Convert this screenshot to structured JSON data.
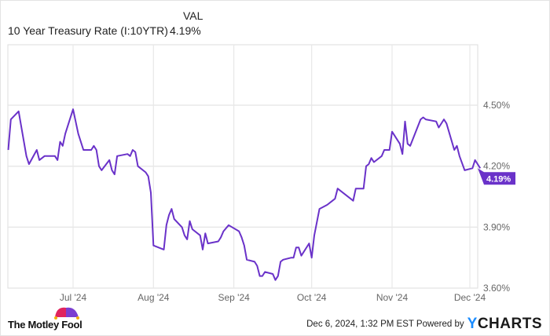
{
  "header": {
    "col_label": "VAL",
    "series_name": "10 Year Treasury Rate (I:10YTR)",
    "series_value": "4.19%"
  },
  "footer": {
    "brand": "The Motley Fool",
    "timestamp": "Dec 6, 2024, 1:32 PM EST Powered by",
    "powered_brand": "YCHARTS"
  },
  "chart_data": {
    "type": "line",
    "title": "",
    "xlabel": "",
    "ylabel": "",
    "x_range": [
      "2024-06-05",
      "2024-12-06"
    ],
    "ylim": [
      3.6,
      4.53
    ],
    "y_axis_side": "right",
    "grid": true,
    "x_ticks": [
      {
        "date": "2024-07-01",
        "label": "Jul '24"
      },
      {
        "date": "2024-08-01",
        "label": "Aug '24"
      },
      {
        "date": "2024-09-01",
        "label": "Sep '24"
      },
      {
        "date": "2024-10-01",
        "label": "Oct '24"
      },
      {
        "date": "2024-11-01",
        "label": "Nov '24"
      },
      {
        "date": "2024-12-01",
        "label": "Dec '24"
      }
    ],
    "y_ticks": [
      {
        "value": 3.6,
        "label": "3.60%"
      },
      {
        "value": 3.9,
        "label": "3.90%"
      },
      {
        "value": 4.2,
        "label": "4.20%"
      },
      {
        "value": 4.5,
        "label": "4.50%"
      }
    ],
    "last_value_label": "4.19%",
    "line_color": "#6a32c9",
    "series": [
      {
        "name": "10 Year Treasury Rate (I:10YTR)",
        "points": [
          [
            "2024-06-06",
            4.28
          ],
          [
            "2024-06-07",
            4.43
          ],
          [
            "2024-06-10",
            4.47
          ],
          [
            "2024-06-13",
            4.25
          ],
          [
            "2024-06-14",
            4.21
          ],
          [
            "2024-06-17",
            4.28
          ],
          [
            "2024-06-18",
            4.23
          ],
          [
            "2024-06-20",
            4.25
          ],
          [
            "2024-06-24",
            4.25
          ],
          [
            "2024-06-25",
            4.23
          ],
          [
            "2024-06-26",
            4.32
          ],
          [
            "2024-06-27",
            4.3
          ],
          [
            "2024-06-28",
            4.36
          ],
          [
            "2024-07-01",
            4.48
          ],
          [
            "2024-07-03",
            4.36
          ],
          [
            "2024-07-05",
            4.28
          ],
          [
            "2024-07-08",
            4.28
          ],
          [
            "2024-07-09",
            4.3
          ],
          [
            "2024-07-10",
            4.28
          ],
          [
            "2024-07-11",
            4.2
          ],
          [
            "2024-07-12",
            4.18
          ],
          [
            "2024-07-15",
            4.23
          ],
          [
            "2024-07-16",
            4.18
          ],
          [
            "2024-07-17",
            4.16
          ],
          [
            "2024-07-18",
            4.25
          ],
          [
            "2024-07-22",
            4.26
          ],
          [
            "2024-07-23",
            4.25
          ],
          [
            "2024-07-24",
            4.28
          ],
          [
            "2024-07-25",
            4.27
          ],
          [
            "2024-07-26",
            4.2
          ],
          [
            "2024-07-29",
            4.17
          ],
          [
            "2024-07-30",
            4.15
          ],
          [
            "2024-07-31",
            4.07
          ],
          [
            "2024-08-01",
            3.81
          ],
          [
            "2024-08-05",
            3.79
          ],
          [
            "2024-08-06",
            3.91
          ],
          [
            "2024-08-07",
            3.96
          ],
          [
            "2024-08-08",
            3.99
          ],
          [
            "2024-08-09",
            3.94
          ],
          [
            "2024-08-12",
            3.9
          ],
          [
            "2024-08-13",
            3.86
          ],
          [
            "2024-08-14",
            3.84
          ],
          [
            "2024-08-15",
            3.93
          ],
          [
            "2024-08-16",
            3.89
          ],
          [
            "2024-08-19",
            3.86
          ],
          [
            "2024-08-20",
            3.79
          ],
          [
            "2024-08-21",
            3.87
          ],
          [
            "2024-08-22",
            3.82
          ],
          [
            "2024-08-26",
            3.83
          ],
          [
            "2024-08-27",
            3.85
          ],
          [
            "2024-08-28",
            3.88
          ],
          [
            "2024-08-30",
            3.91
          ],
          [
            "2024-09-03",
            3.88
          ],
          [
            "2024-09-04",
            3.85
          ],
          [
            "2024-09-05",
            3.81
          ],
          [
            "2024-09-06",
            3.74
          ],
          [
            "2024-09-09",
            3.73
          ],
          [
            "2024-09-10",
            3.71
          ],
          [
            "2024-09-11",
            3.66
          ],
          [
            "2024-09-12",
            3.66
          ],
          [
            "2024-09-13",
            3.68
          ],
          [
            "2024-09-16",
            3.67
          ],
          [
            "2024-09-17",
            3.64
          ],
          [
            "2024-09-18",
            3.66
          ],
          [
            "2024-09-19",
            3.73
          ],
          [
            "2024-09-20",
            3.74
          ],
          [
            "2024-09-23",
            3.75
          ],
          [
            "2024-09-24",
            3.75
          ],
          [
            "2024-09-25",
            3.8
          ],
          [
            "2024-09-26",
            3.8
          ],
          [
            "2024-09-27",
            3.76
          ],
          [
            "2024-09-30",
            3.82
          ],
          [
            "2024-10-01",
            3.75
          ],
          [
            "2024-10-02",
            3.86
          ],
          [
            "2024-10-04",
            3.99
          ],
          [
            "2024-10-07",
            4.01
          ],
          [
            "2024-10-09",
            4.03
          ],
          [
            "2024-10-10",
            4.04
          ],
          [
            "2024-10-11",
            4.09
          ],
          [
            "2024-10-17",
            4.03
          ],
          [
            "2024-10-18",
            4.09
          ],
          [
            "2024-10-21",
            4.09
          ],
          [
            "2024-10-22",
            4.2
          ],
          [
            "2024-10-23",
            4.21
          ],
          [
            "2024-10-24",
            4.24
          ],
          [
            "2024-10-25",
            4.22
          ],
          [
            "2024-10-28",
            4.25
          ],
          [
            "2024-10-29",
            4.28
          ],
          [
            "2024-10-30",
            4.28
          ],
          [
            "2024-10-31",
            4.28
          ],
          [
            "2024-11-01",
            4.37
          ],
          [
            "2024-11-04",
            4.31
          ],
          [
            "2024-11-05",
            4.26
          ],
          [
            "2024-11-06",
            4.42
          ],
          [
            "2024-11-07",
            4.31
          ],
          [
            "2024-11-08",
            4.3
          ],
          [
            "2024-11-12",
            4.43
          ],
          [
            "2024-11-13",
            4.44
          ],
          [
            "2024-11-14",
            4.43
          ],
          [
            "2024-11-18",
            4.42
          ],
          [
            "2024-11-19",
            4.39
          ],
          [
            "2024-11-21",
            4.43
          ],
          [
            "2024-11-22",
            4.41
          ],
          [
            "2024-11-25",
            4.28
          ],
          [
            "2024-11-26",
            4.3
          ],
          [
            "2024-11-27",
            4.25
          ],
          [
            "2024-11-29",
            4.18
          ],
          [
            "2024-12-02",
            4.19
          ],
          [
            "2024-12-03",
            4.23
          ],
          [
            "2024-12-05",
            4.19
          ]
        ]
      }
    ]
  }
}
